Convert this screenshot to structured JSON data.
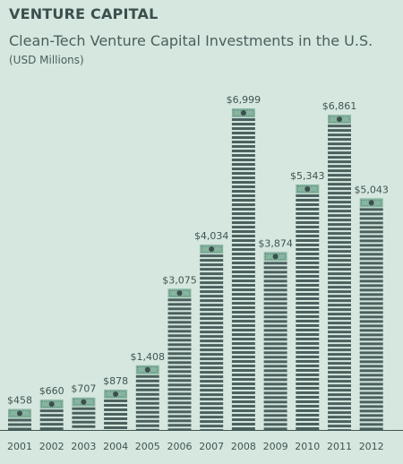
{
  "section_title": "VENTURE CAPITAL",
  "chart_data": {
    "type": "bar",
    "title": "Clean-Tech Venture Capital Investments in the U.S.",
    "subtitle": "(USD Millions)",
    "categories": [
      "2001",
      "2002",
      "2003",
      "2004",
      "2005",
      "2006",
      "2007",
      "2008",
      "2009",
      "2010",
      "2011",
      "2012"
    ],
    "values": [
      458,
      660,
      707,
      878,
      1408,
      3075,
      4034,
      6999,
      3874,
      5343,
      6861,
      5043
    ],
    "value_labels": [
      "$458",
      "$660",
      "$707",
      "$878",
      "$1,408",
      "$3,075",
      "$4,034",
      "$6,999",
      "$3,874",
      "$5,343",
      "$6,861",
      "$5,043"
    ],
    "xlabel": "",
    "ylabel": "",
    "ylim": [
      0,
      7000
    ],
    "grid": false,
    "legend": "none",
    "colors": {
      "background": "#d6e7df",
      "bar_stripe": "#4a605d",
      "money_band": "#86b5a0",
      "coin": "#3b504d",
      "axis": "#3f5552"
    }
  }
}
